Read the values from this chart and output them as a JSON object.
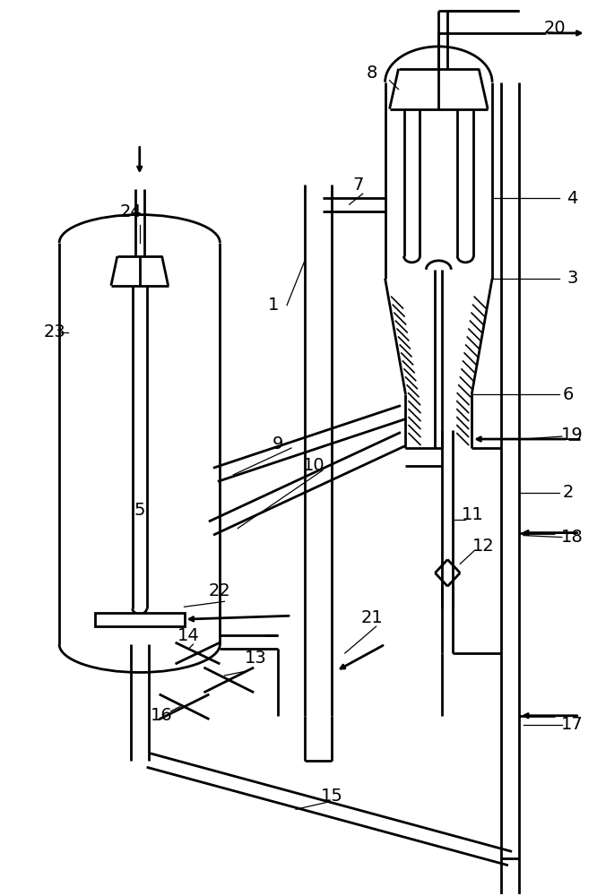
{
  "bg_color": "#ffffff",
  "line_color": "#000000",
  "lw": 2.0,
  "lw_thin": 1.0
}
